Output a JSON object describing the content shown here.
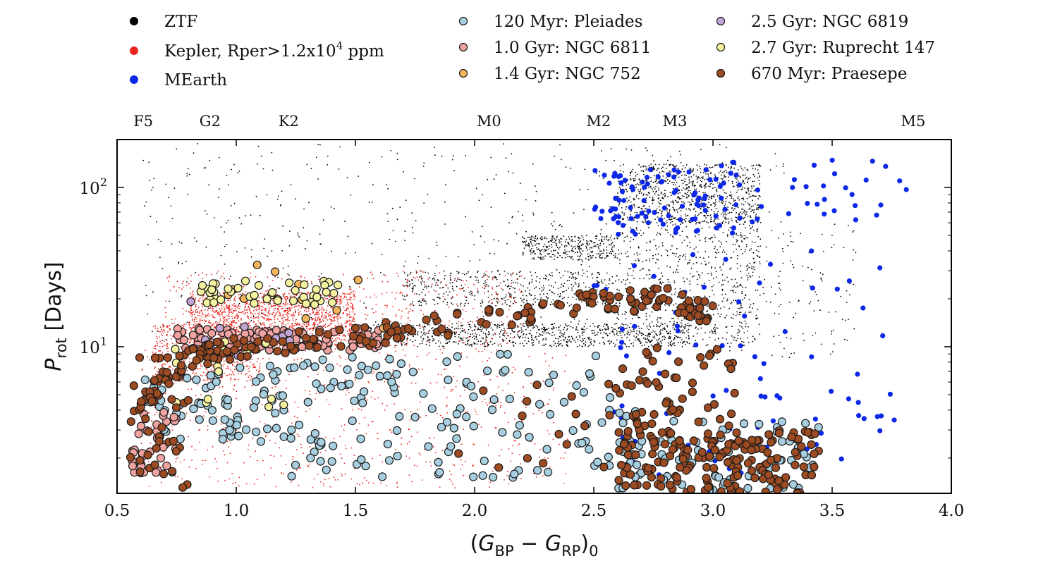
{
  "chart_data": {
    "type": "scatter",
    "xlabel": "(G_BP − G_RP)_0",
    "ylabel": "P_rot [Days]",
    "xlim": [
      0.5,
      4.0
    ],
    "ylim": [
      1.2,
      200
    ],
    "yscale": "log",
    "grid": false,
    "legend_position": "top",
    "x_ticks": [
      "0.5",
      "1.0",
      "1.5",
      "2.0",
      "2.5",
      "3.0",
      "3.5",
      "4.0"
    ],
    "y_ticks": [
      {
        "value": 10,
        "base": "10",
        "exp": "1"
      },
      {
        "value": 100,
        "base": "10",
        "exp": "2"
      }
    ],
    "spectral_types": [
      {
        "label": "F5",
        "x": 0.61
      },
      {
        "label": "G2",
        "x": 0.89
      },
      {
        "label": "K2",
        "x": 1.22
      },
      {
        "label": "M0",
        "x": 2.06
      },
      {
        "label": "M2",
        "x": 2.52
      },
      {
        "label": "M3",
        "x": 2.84
      },
      {
        "label": "M5",
        "x": 3.84
      }
    ],
    "series": [
      {
        "key": "ztf",
        "name": "ZTF",
        "color": "#000000",
        "marker": "dot",
        "regions": [
          {
            "x": [
              2.6,
              3.2
            ],
            "y": [
              60,
              140
            ],
            "n": 900
          },
          {
            "x": [
              2.2,
              2.6
            ],
            "y": [
              35,
              50
            ],
            "n": 350
          },
          {
            "x": [
              1.7,
              2.6
            ],
            "y": [
              18,
              30
            ],
            "n": 450
          },
          {
            "x": [
              1.5,
              2.9
            ],
            "y": [
              10,
              14
            ],
            "n": 900
          },
          {
            "x": [
              2.6,
              3.2
            ],
            "y": [
              10,
              60
            ],
            "n": 600
          },
          {
            "x": [
              0.6,
              3.3
            ],
            "y": [
              10,
              190
            ],
            "n": 600
          },
          {
            "x": [
              3.0,
              3.6
            ],
            "y": [
              8,
              60
            ],
            "n": 150
          }
        ]
      },
      {
        "key": "kepler",
        "name": "Kepler, Rper>1.2x10",
        "name_sup": "4",
        "name_tail": " ppm",
        "color": "#e8251f",
        "marker": "dot",
        "regions": [
          {
            "x": [
              0.8,
              1.5
            ],
            "y": [
              10,
              22
            ],
            "n": 1600
          },
          {
            "x": [
              0.65,
              1.1
            ],
            "y": [
              6,
              14
            ],
            "n": 600
          },
          {
            "x": [
              0.6,
              2.4
            ],
            "y": [
              1.3,
              10
            ],
            "n": 700
          },
          {
            "x": [
              0.7,
              2.2
            ],
            "y": [
              10,
              30
            ],
            "n": 500
          }
        ]
      },
      {
        "key": "mearth",
        "name": "MEarth",
        "color": "#0e28e8",
        "marker": "dot",
        "regions": [
          {
            "x": [
              2.5,
              3.1
            ],
            "y": [
              50,
              130
            ],
            "n": 90
          },
          {
            "x": [
              3.0,
              3.85
            ],
            "y": [
              60,
              150
            ],
            "n": 35
          },
          {
            "x": [
              2.5,
              3.8
            ],
            "y": [
              1.4,
              40
            ],
            "n": 90
          }
        ]
      },
      {
        "key": "pleiades",
        "name": "120 Myr: Pleiades",
        "color": "#a7cfe0",
        "marker": "circle",
        "regions": [
          {
            "x": [
              0.6,
              1.2
            ],
            "y": [
              2.5,
              8
            ],
            "n": 70
          },
          {
            "x": [
              1.2,
              2.7
            ],
            "y": [
              1.5,
              9
            ],
            "n": 140
          },
          {
            "x": [
              2.6,
              3.45
            ],
            "y": [
              1.2,
              3.5
            ],
            "n": 70
          }
        ]
      },
      {
        "key": "ngc6811",
        "name": "1.0 Gyr: NGC 6811",
        "color": "#f0a3a1",
        "marker": "circle",
        "regions": [
          {
            "x": [
              0.75,
              1.6
            ],
            "y": [
              9.5,
              13
            ],
            "n": 110
          },
          {
            "x": [
              0.55,
              0.75
            ],
            "y": [
              1.6,
              4
            ],
            "n": 35
          }
        ]
      },
      {
        "key": "ngc752",
        "name": "1.4 Gyr: NGC 752",
        "color": "#f4b55a",
        "marker": "circle",
        "regions": [
          {
            "x": [
              0.9,
              1.7
            ],
            "y": [
              10,
              35
            ],
            "n": 12
          }
        ]
      },
      {
        "key": "ngc6819",
        "name": "2.5 Gyr: NGC 6819",
        "color": "#c2a5d4",
        "marker": "circle",
        "regions": [
          {
            "x": [
              0.8,
              1.3
            ],
            "y": [
              8,
              20
            ],
            "n": 10
          }
        ]
      },
      {
        "key": "ruprecht147",
        "name": "2.7 Gyr: Ruprecht 147",
        "color": "#f5f3a0",
        "marker": "circle",
        "regions": [
          {
            "x": [
              0.85,
              1.45
            ],
            "y": [
              18,
              26
            ],
            "n": 45
          },
          {
            "x": [
              0.7,
              1.2
            ],
            "y": [
              4,
              12
            ],
            "n": 15
          }
        ]
      },
      {
        "key": "praesepe",
        "name": "670 Myr: Praesepe",
        "color": "#9c4b22",
        "marker": "circle",
        "trend": [
          [
            0.6,
            4.5
          ],
          [
            0.8,
            8.5
          ],
          [
            1.0,
            10
          ],
          [
            1.5,
            11.5
          ],
          [
            2.0,
            14.5
          ],
          [
            2.5,
            19
          ],
          [
            2.8,
            20
          ],
          [
            3.0,
            16
          ]
        ],
        "regions": [
          {
            "x": [
              0.55,
              0.8
            ],
            "y": [
              1.3,
              9
            ],
            "n": 40
          },
          {
            "x": [
              2.6,
              3.45
            ],
            "y": [
              1.2,
              3
            ],
            "n": 170
          },
          {
            "x": [
              2.55,
              3.1
            ],
            "y": [
              3,
              10
            ],
            "n": 50
          },
          {
            "x": [
              1.9,
              2.9
            ],
            "y": [
              1.5,
              6
            ],
            "n": 30
          }
        ]
      }
    ]
  }
}
